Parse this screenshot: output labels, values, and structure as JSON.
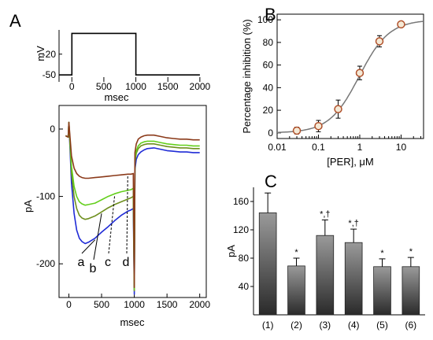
{
  "panels": {
    "a": "A",
    "b": "B",
    "c": "C"
  },
  "chart_data": [
    {
      "id": "A-protocol",
      "type": "line",
      "xlabel": "msec",
      "ylabel": "mV",
      "xticks": [
        0,
        500,
        1000,
        1500,
        2000
      ],
      "yticks": [
        -20,
        -50
      ],
      "xlim": [
        -200,
        2100
      ],
      "ylim": [
        -60,
        15
      ],
      "series": [
        {
          "x": [
            -200,
            0,
            0,
            1000,
            1000,
            2000
          ],
          "y": [
            -50,
            -50,
            10,
            10,
            -50,
            -50
          ]
        }
      ]
    },
    {
      "id": "A-currents",
      "type": "line",
      "xlabel": "msec",
      "ylabel": "pA",
      "xticks": [
        0,
        500,
        1000,
        1500,
        2000
      ],
      "yticks": [
        0,
        -100,
        -200
      ],
      "xlim": [
        -150,
        2100
      ],
      "ylim": [
        -250,
        35
      ],
      "trace_labels": [
        "a",
        "b",
        "c",
        "d"
      ],
      "series": [
        {
          "label": "a",
          "color": "#1f2bd6",
          "x": [
            -50,
            -10,
            0,
            40,
            80,
            120,
            160,
            200,
            250,
            300,
            400,
            500,
            600,
            700,
            800,
            900,
            950,
            985,
            1000,
            1010,
            1030,
            1060,
            1100,
            1150,
            1200,
            1300,
            1400,
            1500,
            1600,
            1700,
            1800,
            1900,
            2000
          ],
          "y": [
            -10,
            -12,
            10,
            -80,
            -125,
            -150,
            -162,
            -167,
            -170,
            -168,
            -162,
            -153,
            -145,
            -136,
            -128,
            -122,
            -120,
            -118,
            -245,
            -60,
            -45,
            -38,
            -34,
            -31,
            -29,
            -28,
            -30,
            -32,
            -33,
            -34,
            -34,
            -35,
            -35
          ]
        },
        {
          "label": "b",
          "color": "#6e8f1e",
          "x": [
            -50,
            -10,
            0,
            40,
            80,
            120,
            160,
            200,
            250,
            300,
            400,
            500,
            600,
            700,
            800,
            900,
            950,
            985,
            1000,
            1010,
            1030,
            1060,
            1100,
            1150,
            1200,
            1300,
            1400,
            1500,
            1600,
            1700,
            1800,
            1900,
            2000
          ],
          "y": [
            -10,
            -12,
            10,
            -65,
            -100,
            -118,
            -128,
            -132,
            -134,
            -133,
            -129,
            -123,
            -117,
            -112,
            -108,
            -104,
            -102,
            -100,
            -240,
            -50,
            -36,
            -29,
            -25,
            -23,
            -22,
            -22,
            -24,
            -26,
            -27,
            -28,
            -28,
            -29,
            -29
          ]
        },
        {
          "label": "c",
          "color": "#63cf1c",
          "x": [
            -50,
            -10,
            0,
            40,
            80,
            120,
            160,
            200,
            250,
            300,
            400,
            500,
            600,
            700,
            800,
            900,
            950,
            985,
            1000,
            1010,
            1030,
            1060,
            1100,
            1150,
            1200,
            1300,
            1400,
            1500,
            1600,
            1700,
            1800,
            1900,
            2000
          ],
          "y": [
            -10,
            -12,
            10,
            -55,
            -85,
            -100,
            -108,
            -111,
            -113,
            -112,
            -110,
            -105,
            -100,
            -96,
            -93,
            -91,
            -90,
            -88,
            -238,
            -45,
            -32,
            -25,
            -21,
            -19,
            -18,
            -18,
            -20,
            -22,
            -23,
            -24,
            -24,
            -25,
            -25
          ]
        },
        {
          "label": "d",
          "color": "#8b3a1a",
          "x": [
            -50,
            -10,
            0,
            40,
            80,
            120,
            160,
            200,
            250,
            300,
            400,
            500,
            600,
            700,
            800,
            900,
            950,
            985,
            1000,
            1010,
            1030,
            1060,
            1100,
            1150,
            1200,
            1300,
            1400,
            1500,
            1600,
            1700,
            1800,
            1900,
            2000
          ],
          "y": [
            -10,
            -12,
            10,
            -40,
            -58,
            -66,
            -70,
            -72,
            -73,
            -73,
            -72,
            -71,
            -70,
            -69,
            -68,
            -67,
            -67,
            -66,
            -235,
            -35,
            -22,
            -15,
            -12,
            -10,
            -9,
            -9,
            -11,
            -13,
            -14,
            -15,
            -15,
            -16,
            -16
          ]
        }
      ]
    },
    {
      "id": "B",
      "type": "scatter",
      "xlabel": "[PER], μM",
      "ylabel": "Percentage inhibition (%)",
      "xscale": "log",
      "xticks": [
        0.01,
        0.1,
        1,
        10
      ],
      "xtick_labels": [
        "0.01",
        "0.1",
        "1",
        "10"
      ],
      "yticks": [
        0,
        20,
        40,
        60,
        80,
        100
      ],
      "xlim": [
        0.01,
        35
      ],
      "ylim": [
        -5,
        105
      ],
      "series": [
        {
          "x": [
            0.03,
            0.1,
            0.3,
            1,
            3,
            10
          ],
          "y": [
            2,
            6,
            21,
            53,
            81,
            96
          ],
          "err": [
            3,
            5,
            8,
            6,
            5,
            2
          ]
        }
      ],
      "fit": {
        "IC50": 0.97,
        "hill": 1.2,
        "max": 100
      }
    },
    {
      "id": "C",
      "type": "bar",
      "ylabel": "pA",
      "categories": [
        "(1)",
        "(2)",
        "(3)",
        "(4)",
        "(5)",
        "(6)"
      ],
      "values": [
        144,
        69,
        112,
        102,
        68,
        68
      ],
      "errors": [
        28,
        11,
        22,
        19,
        11,
        13
      ],
      "significance": [
        "",
        "*",
        "*,†",
        "*,†",
        "*",
        "*"
      ],
      "yticks": [
        40,
        80,
        120,
        160
      ],
      "ylim": [
        0,
        180
      ]
    }
  ]
}
